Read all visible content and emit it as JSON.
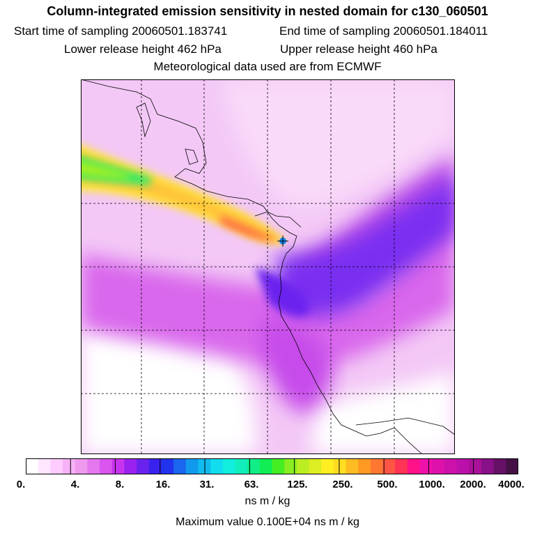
{
  "header": {
    "title": "Column-integrated emission sensitivity in nested domain for c130_060501",
    "start_time": "Start time of sampling 20060501.183741",
    "end_time": "End time of sampling 20060501.184011",
    "lower_height": "Lower release height  462 hPa",
    "upper_height": "Upper release height  460 hPa",
    "met_data": "Meteorological data used are from ECMWF"
  },
  "map": {
    "grid": "dashed lat/lon lines",
    "release_point_marker": "release-point-cross",
    "plume_direction": "plume from release point extending west-northwest to the left edge"
  },
  "colorbar": {
    "colors": [
      "#ffffff",
      "#ffe6ff",
      "#ffccff",
      "#f7b2f7",
      "#ee99ee",
      "#e477ee",
      "#d955ee",
      "#c833ee",
      "#9a22ee",
      "#6a22ee",
      "#3a22ee",
      "#2233ee",
      "#1a66ee",
      "#1199ee",
      "#11bbee",
      "#11ddee",
      "#11eedd",
      "#11eebb",
      "#11ee88",
      "#11ee55",
      "#44ee22",
      "#88ee22",
      "#bbee22",
      "#ddee22",
      "#ffee22",
      "#ffdd22",
      "#ffbb22",
      "#ff9922",
      "#ff7733",
      "#ff5544",
      "#ff3355",
      "#ff1188",
      "#ee11aa",
      "#dd11aa",
      "#cc11aa",
      "#bb11aa",
      "#aa1199",
      "#881188",
      "#661166",
      "#441144"
    ],
    "ticks": [
      "0.",
      "4.",
      "8.",
      "16.",
      "31.",
      "63.",
      "125.",
      "250.",
      "500.",
      "1000.",
      "2000.",
      "4000."
    ],
    "units": "ns m / kg",
    "max_value": "Maximum value  0.100E+04 ns m / kg"
  }
}
